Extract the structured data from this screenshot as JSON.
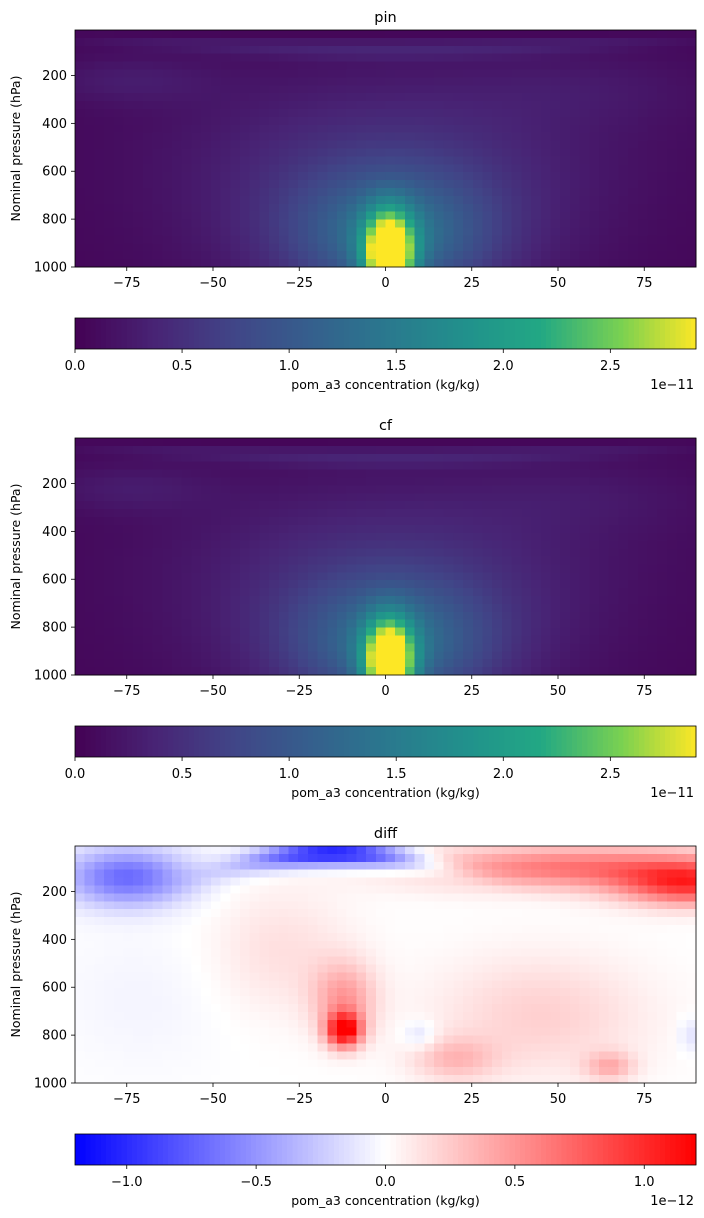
{
  "chart_data": [
    {
      "type": "heatmap",
      "title": "pin",
      "xlabel": "",
      "ylabel": "Nominal pressure (hPa)",
      "xlim": [
        -90,
        90
      ],
      "ylim": [
        1000,
        10
      ],
      "x_ticks": [
        -75,
        -50,
        -25,
        0,
        25,
        50,
        75
      ],
      "y_ticks": [
        200,
        400,
        600,
        800,
        1000
      ],
      "colormap": "viridis",
      "colorbar": {
        "label": "pom_a3 concentration (kg/kg)",
        "range": [
          0,
          2.9e-11
        ],
        "ticks": [
          "0.0",
          "0.5",
          "1.0",
          "1.5",
          "2.0",
          "2.5"
        ],
        "tick_values": [
          0,
          0.5,
          1.0,
          1.5,
          2.0,
          2.5
        ],
        "offset": "1e−11"
      },
      "features": {
        "surface_max": {
          "lat": 1,
          "pressure": 930,
          "value": 2.9e-11
        },
        "tropopause_band": "faint lighter arc near 50-150 hPa"
      }
    },
    {
      "type": "heatmap",
      "title": "cf",
      "xlabel": "",
      "ylabel": "Nominal pressure (hPa)",
      "xlim": [
        -90,
        90
      ],
      "ylim": [
        1000,
        10
      ],
      "x_ticks": [
        -75,
        -50,
        -25,
        0,
        25,
        50,
        75
      ],
      "y_ticks": [
        200,
        400,
        600,
        800,
        1000
      ],
      "colormap": "viridis",
      "colorbar": {
        "label": "pom_a3 concentration (kg/kg)",
        "range": [
          0,
          2.9e-11
        ],
        "ticks": [
          "0.0",
          "0.5",
          "1.0",
          "1.5",
          "2.0",
          "2.5"
        ],
        "tick_values": [
          0,
          0.5,
          1.0,
          1.5,
          2.0,
          2.5
        ],
        "offset": "1e−11"
      },
      "features": {
        "surface_max": {
          "lat": 1,
          "pressure": 930,
          "value": 2.8e-11
        }
      }
    },
    {
      "type": "heatmap",
      "title": "diff",
      "xlabel": "",
      "ylabel": "Nominal pressure (hPa)",
      "xlim": [
        -90,
        90
      ],
      "ylim": [
        1000,
        10
      ],
      "x_ticks": [
        -75,
        -50,
        -25,
        0,
        25,
        50,
        75
      ],
      "y_ticks": [
        200,
        400,
        600,
        800,
        1000
      ],
      "colormap": "bwr",
      "colorbar": {
        "label": "pom_a3 concentration (kg/kg)",
        "range": [
          -1.2e-12,
          1.2e-12
        ],
        "ticks": [
          "−1.0",
          "−0.5",
          "0.0",
          "0.5",
          "1.0"
        ],
        "tick_values": [
          -1.0,
          -0.5,
          0.0,
          0.5,
          1.0
        ],
        "offset": "1e−12"
      },
      "features": {
        "min_upper_sh": {
          "lat": -10,
          "pressure": 30,
          "value": -1.2e-12
        },
        "max_upper_nh": {
          "lat": 85,
          "pressure": 150,
          "value": 1e-12
        },
        "max_lower": {
          "lat": -12,
          "pressure": 790,
          "value": 1.2e-12
        }
      }
    }
  ]
}
